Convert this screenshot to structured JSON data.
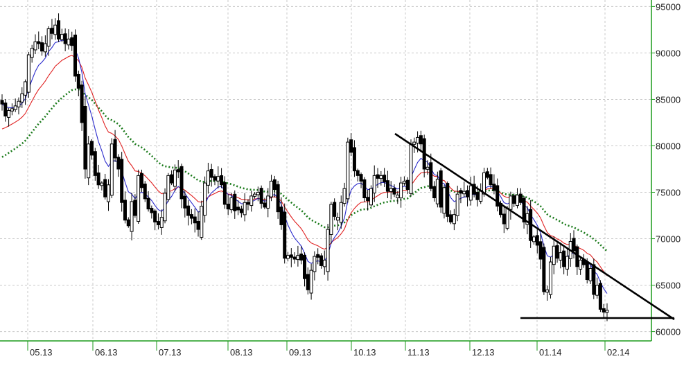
{
  "chart_data": {
    "type": "candlestick",
    "x_labels": [
      "05.13",
      "06.13",
      "07.13",
      "08.13",
      "09.13",
      "10.13",
      "11.13",
      "12.13",
      "01.14",
      "02.14"
    ],
    "y_ticks": [
      60000,
      65000,
      70000,
      75000,
      80000,
      85000,
      90000,
      95000
    ],
    "y_tick_labels": [
      "60000",
      "65000",
      "70000",
      "75000",
      "80000",
      "85000",
      "90000",
      "95000"
    ],
    "ylim": [
      59000,
      95700
    ],
    "grid": "dashed",
    "colors": {
      "background": "#ffffff",
      "grid": "#c8c8c8",
      "axis": "#1a9a1a",
      "bull": "#ffffff",
      "bear": "#000000",
      "ma_fast": "#2a2acc",
      "ma_mid": "#e02020",
      "ma_slow": "#1a7a1a",
      "trendline": "#000000"
    },
    "close": [
      84500,
      83200,
      83800,
      84000,
      84300,
      84800,
      85600,
      86900,
      89800,
      90500,
      91200,
      91000,
      90200,
      91000,
      92600,
      92100,
      93000,
      91500,
      92000,
      91000,
      91500,
      90800,
      87500,
      86200,
      82500,
      77500,
      80200,
      79000,
      76800,
      75800,
      76000,
      74500,
      75800,
      80200,
      78700,
      77500,
      73900,
      72000,
      71400,
      74000,
      72500,
      76800,
      75500,
      74300,
      73200,
      72800,
      71800,
      71500,
      72300,
      74900,
      76800,
      76000,
      77400,
      77200,
      74300,
      73300,
      72500,
      72200,
      71700,
      71000,
      73500,
      76000,
      77300,
      76600,
      76300,
      76700,
      75800,
      73700,
      73200,
      74400,
      73000,
      73100,
      72800,
      73900,
      73700,
      74600,
      74800,
      75000,
      73800,
      73400,
      74600,
      76200,
      75300,
      72900,
      71500,
      67900,
      68200,
      68000,
      67800,
      68200,
      67700,
      65700,
      64500,
      66600,
      68100,
      68000,
      67100,
      67700,
      71000,
      73700,
      72400,
      72300,
      73900,
      75400,
      80400,
      79300,
      77300,
      76800,
      76200,
      74400,
      74100,
      75400,
      76800,
      76500,
      76800,
      76100,
      75100,
      75400,
      74800,
      74700,
      76000,
      76200,
      75300,
      80200,
      80400,
      80900,
      80200,
      77500,
      77700,
      75400,
      74400,
      76400,
      73400,
      75500,
      72400,
      71800,
      72600,
      74800,
      74900,
      75100,
      74500,
      75700,
      74800,
      74200,
      75200,
      77100,
      76600,
      75800,
      75200,
      73500,
      72600,
      71600,
      73300,
      74600,
      73800,
      74700,
      73900,
      71800,
      72700,
      69800,
      70200,
      69300,
      67800,
      64300,
      64500,
      67500,
      69200,
      67900,
      68500,
      67000,
      68100,
      69700,
      68700,
      67000,
      67700,
      67200,
      65600,
      66800,
      64000,
      65000,
      62400,
      62100,
      62300
    ]
  }
}
